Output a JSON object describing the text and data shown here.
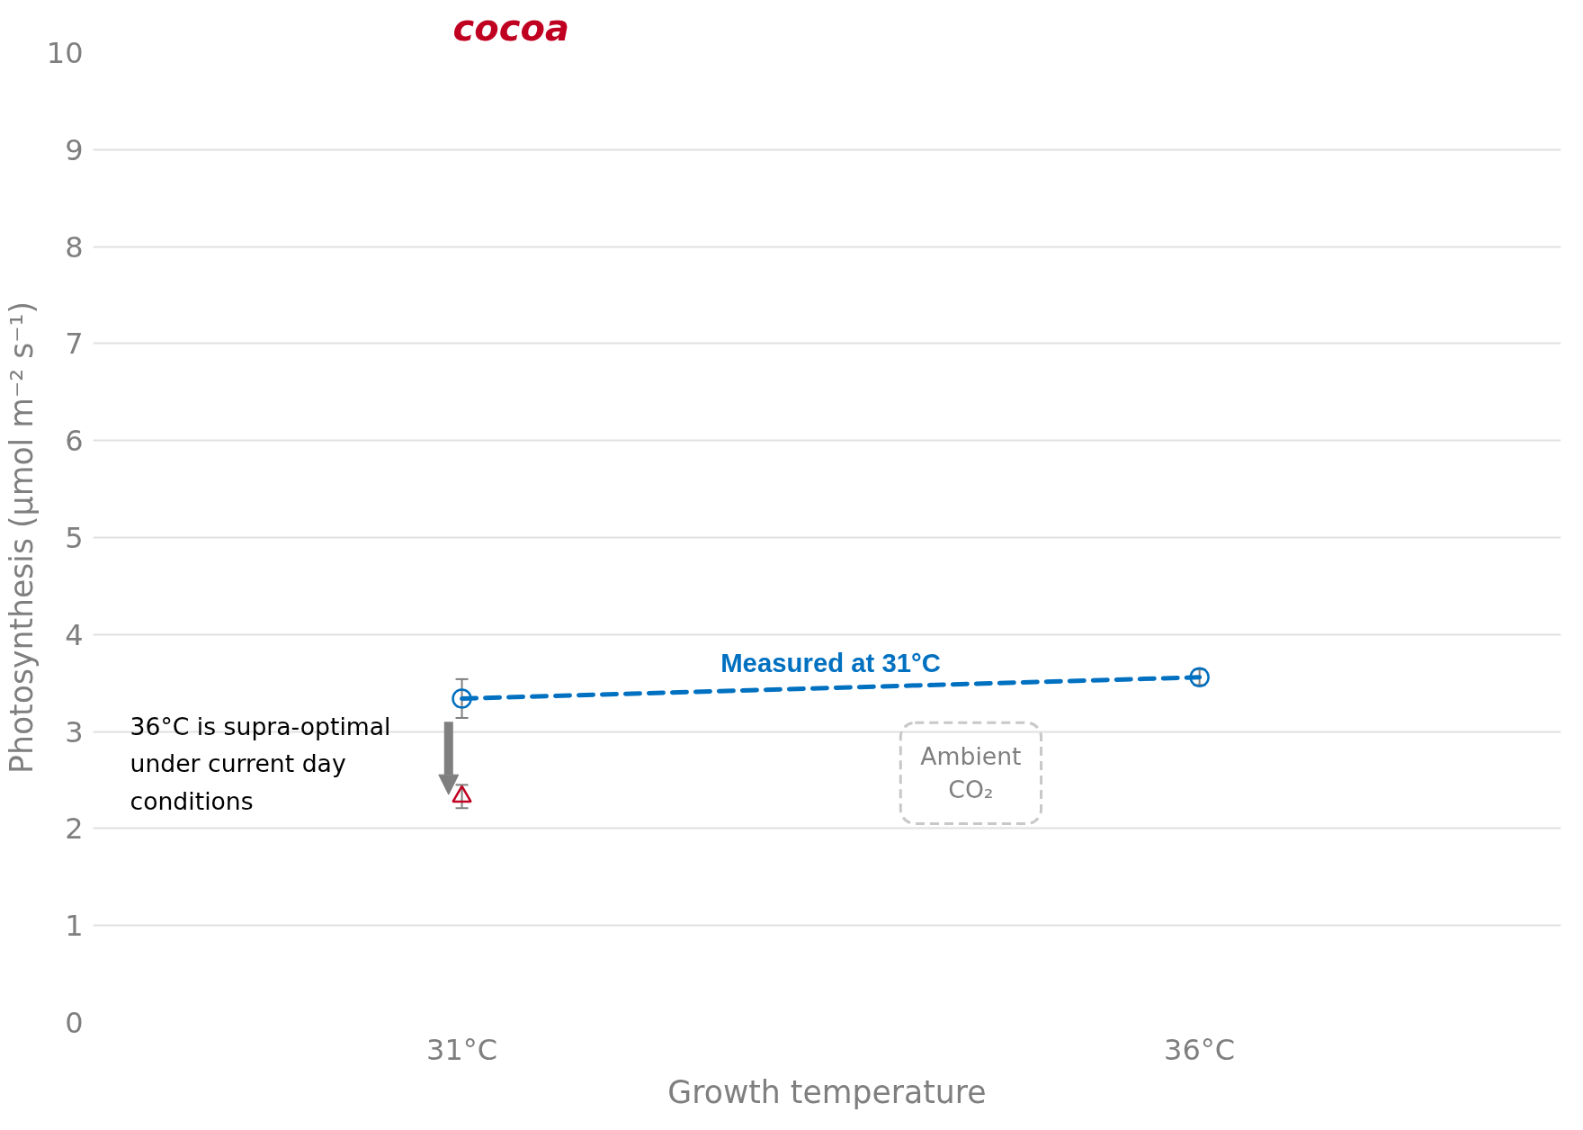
{
  "chart_data": {
    "type": "line",
    "title": "cocoa",
    "xlabel": "Growth temperature",
    "ylabel": "Photosynthesis (µmol m⁻² s⁻¹)",
    "categories": [
      "31°C",
      "36°C"
    ],
    "series": [
      {
        "name": "Measured at 31°C",
        "color": "#0070c0",
        "values": [
          3.34,
          3.56
        ],
        "errors": [
          0.2,
          0.08
        ],
        "marker": "circle",
        "line_style": "dashed"
      },
      {
        "type": "scatter",
        "color": "#c00020",
        "values": [
          2.33,
          null
        ],
        "errors": [
          0.12,
          null
        ],
        "marker": "triangle"
      }
    ],
    "ylim": [
      0,
      10
    ],
    "yticks": [
      0,
      1,
      2,
      3,
      4,
      5,
      6,
      7,
      8,
      9,
      10
    ],
    "grid": "y",
    "annotations": [
      "36°C is supra-optimal\nunder current day\nconditions",
      "Ambient CO₂"
    ]
  }
}
